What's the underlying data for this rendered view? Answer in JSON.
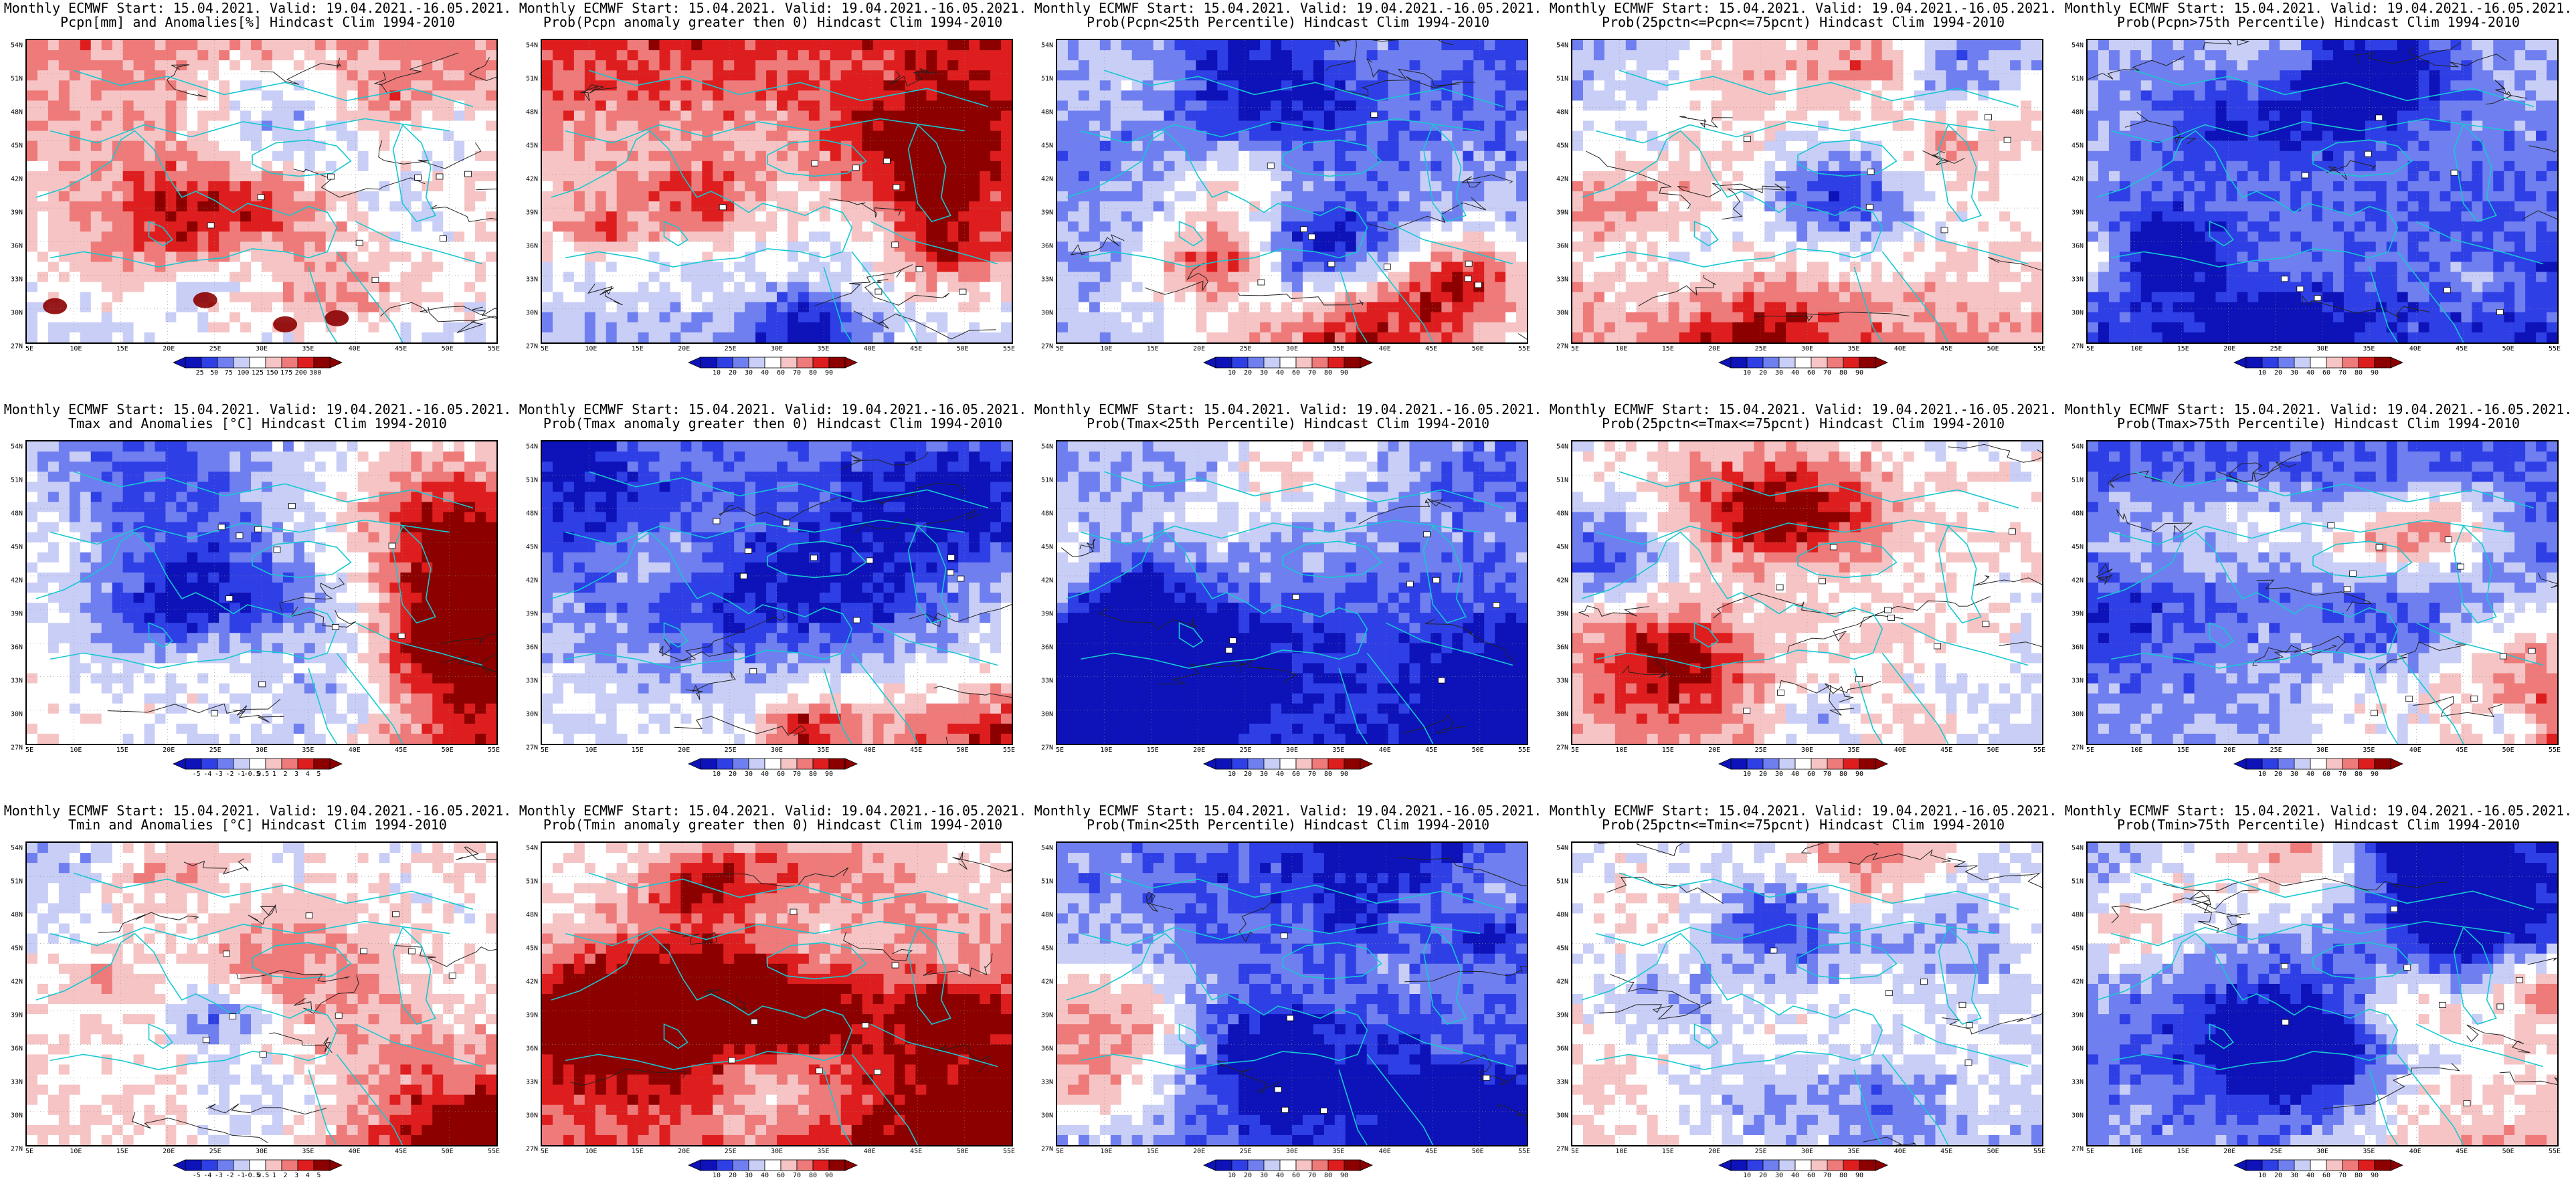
{
  "colors": {
    "deep_blue": "#0d13b8",
    "blue": "#2f3fe6",
    "mid_blue": "#6f7ff0",
    "light_blue": "#c9cef7",
    "white": "#ffffff",
    "light_red": "#f6c4c4",
    "mid_red": "#ee7a7a",
    "red": "#de1e1e",
    "deep_red": "#8c0000",
    "coast": "#16c8d2",
    "contour": "#222222"
  },
  "map_axes": {
    "lat_labels": [
      "54N",
      "51N",
      "48N",
      "45N",
      "42N",
      "39N",
      "36N",
      "33N",
      "30N",
      "27N"
    ],
    "lon_labels": [
      "5E",
      "10E",
      "15E",
      "20E",
      "25E",
      "30E",
      "35E",
      "40E",
      "45E",
      "50E",
      "55E"
    ]
  },
  "colorbars": {
    "pcpn_anom": [
      "25",
      "50",
      "75",
      "100",
      "125",
      "150",
      "175",
      "200",
      "300"
    ],
    "prob": [
      "10",
      "20",
      "30",
      "40",
      "60",
      "70",
      "80",
      "90"
    ],
    "temp_anom": [
      "-5",
      "-4",
      "-3",
      "-2",
      "-1",
      "-0.5",
      "0.5",
      "1",
      "2",
      "3",
      "4",
      "5"
    ]
  },
  "panels": [
    {
      "line1": "Monthly ECMWF Start: 15.04.2021. Valid: 19.04.2021.-16.05.2021.",
      "line2": "Pcpn[mm] and Anomalies[%] Hindcast Clim 1994-2010",
      "cbar": "pcpn_anom",
      "bias": 0.15,
      "south": -0.35,
      "east": 0.0,
      "seed": 11,
      "extreme_south": true
    },
    {
      "line1": "Monthly ECMWF Start: 15.04.2021. Valid: 19.04.2021.-16.05.2021.",
      "line2": "Prob(Pcpn anomaly greater then 0) Hindcast Clim 1994-2010",
      "cbar": "prob",
      "bias": 0.2,
      "south": -0.55,
      "east": 0.05,
      "seed": 23,
      "extreme_south": false
    },
    {
      "line1": "Monthly ECMWF Start: 15.04.2021. Valid: 19.04.2021.-16.05.2021.",
      "line2": "Prob(Pcpn<25th Percentile) Hindcast Clim 1994-2010",
      "cbar": "prob",
      "bias": -0.45,
      "south": 0.2,
      "east": -0.1,
      "seed": 37,
      "extreme_south": false
    },
    {
      "line1": "Monthly ECMWF Start: 15.04.2021. Valid: 19.04.2021.-16.05.2021.",
      "line2": "Prob(25pctn<=Pcpn<=75pcnt) Hindcast Clim 1994-2010",
      "cbar": "prob",
      "bias": 0.0,
      "south": 0.45,
      "east": -0.1,
      "seed": 41,
      "extreme_south": false
    },
    {
      "line1": "Monthly ECMWF Start: 15.04.2021. Valid: 19.04.2021.-16.05.2021.",
      "line2": "Prob(Pcpn>75th Percentile) Hindcast Clim 1994-2010",
      "cbar": "prob",
      "bias": -0.55,
      "south": -0.25,
      "east": 0.0,
      "seed": 53,
      "extreme_south": false
    },
    {
      "line1": "Monthly ECMWF Start: 15.04.2021. Valid: 19.04.2021.-16.05.2021.",
      "line2": "Tmax and Anomalies [°C] Hindcast Clim 1994-2010",
      "cbar": "temp_anom",
      "bias": -0.05,
      "south": 0.1,
      "east": 0.75,
      "seed": 61,
      "extreme_south": false
    },
    {
      "line1": "Monthly ECMWF Start: 15.04.2021. Valid: 19.04.2021.-16.05.2021.",
      "line2": "Prob(Tmax anomaly greater then 0) Hindcast Clim 1994-2010",
      "cbar": "prob",
      "bias": -0.25,
      "south": 0.2,
      "east": 0.95,
      "seed": 71,
      "extreme_south": false
    },
    {
      "line1": "Monthly ECMWF Start: 15.04.2021. Valid: 19.04.2021.-16.05.2021.",
      "line2": "Prob(Tmax<25th Percentile) Hindcast Clim 1994-2010",
      "cbar": "prob",
      "bias": -0.5,
      "south": -0.15,
      "east": -0.45,
      "seed": 83,
      "extreme_south": false
    },
    {
      "line1": "Monthly ECMWF Start: 15.04.2021. Valid: 19.04.2021.-16.05.2021.",
      "line2": "Prob(25pctn<=Tmax<=75pcnt) Hindcast Clim 1994-2010",
      "cbar": "prob",
      "bias": 0.1,
      "south": 0.15,
      "east": -0.5,
      "seed": 97,
      "extreme_south": false
    },
    {
      "line1": "Monthly ECMWF Start: 15.04.2021. Valid: 19.04.2021.-16.05.2021.",
      "line2": "Prob(Tmax>75th Percentile) Hindcast Clim 1994-2010",
      "cbar": "prob",
      "bias": -0.55,
      "south": 0.15,
      "east": 1.05,
      "seed": 103,
      "extreme_south": false
    },
    {
      "line1": "Monthly ECMWF Start: 15.04.2021. Valid: 19.04.2021.-16.05.2021.",
      "line2": "Tmin and Anomalies [°C] Hindcast Clim 1994-2010",
      "cbar": "temp_anom",
      "bias": 0.05,
      "south": 0.1,
      "east": 0.55,
      "seed": 113,
      "extreme_south": false
    },
    {
      "line1": "Monthly ECMWF Start: 15.04.2021. Valid: 19.04.2021.-16.05.2021.",
      "line2": "Prob(Tmin anomaly greater then 0) Hindcast Clim 1994-2010",
      "cbar": "prob",
      "bias": 0.25,
      "south": 0.2,
      "east": 0.95,
      "seed": 127,
      "extreme_south": false
    },
    {
      "line1": "Monthly ECMWF Start: 15.04.2021. Valid: 19.04.2021.-16.05.2021.",
      "line2": "Prob(Tmin<25th Percentile) Hindcast Clim 1994-2010",
      "cbar": "prob",
      "bias": -0.55,
      "south": -0.1,
      "east": -0.5,
      "seed": 131,
      "extreme_south": false
    },
    {
      "line1": "Monthly ECMWF Start: 15.04.2021. Valid: 19.04.2021.-16.05.2021.",
      "line2": "Prob(25pctn<=Tmin<=75pcnt) Hindcast Clim 1994-2010",
      "cbar": "prob",
      "bias": 0.05,
      "south": 0.1,
      "east": -0.55,
      "seed": 139,
      "extreme_south": false
    },
    {
      "line1": "Monthly ECMWF Start: 15.04.2021. Valid: 19.04.2021.-16.05.2021.",
      "line2": "Prob(Tmin>75th Percentile) Hindcast Clim 1994-2010",
      "cbar": "prob",
      "bias": -0.5,
      "south": 0.05,
      "east": 1.0,
      "seed": 149,
      "extreme_south": false
    }
  ]
}
